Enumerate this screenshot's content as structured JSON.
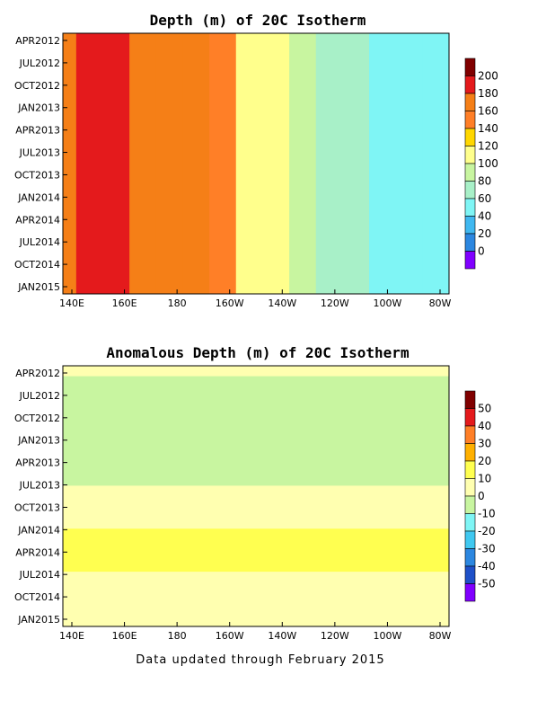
{
  "footer": "Data updated through February 2015",
  "chart_data": [
    {
      "type": "heatmap",
      "title": "Depth (m) of 20C Isotherm",
      "x_ticks": [
        "140E",
        "160E",
        "180",
        "160W",
        "140W",
        "120W",
        "100W",
        "80W"
      ],
      "y_ticks": [
        "APR2012",
        "JUL2012",
        "OCT2012",
        "JAN2013",
        "APR2013",
        "JUL2013",
        "OCT2013",
        "JAN2014",
        "APR2014",
        "JUL2014",
        "OCT2014",
        "JAN2015"
      ],
      "colorbar": {
        "labels": [
          "200",
          "180",
          "160",
          "140",
          "120",
          "100",
          "80",
          "60",
          "40",
          "20",
          "0"
        ],
        "colors": [
          "#800000",
          "#e41a1c",
          "#f57f17",
          "#ff7f27",
          "#ffd700",
          "#ffff8c",
          "#c8f5a0",
          "#a8f0c8",
          "#7ff5f5",
          "#40b8f0",
          "#2c87e0",
          "#8000ff"
        ]
      },
      "bands": [
        {
          "x": 140,
          "value": 165
        },
        {
          "x": 150,
          "value": 185
        },
        {
          "x": 160,
          "value": 180
        },
        {
          "x": 170,
          "value": 170
        },
        {
          "x": 180,
          "value": 165
        },
        {
          "x": 190,
          "value": 160
        },
        {
          "x": 200,
          "value": 140
        },
        {
          "x": 210,
          "value": 118
        },
        {
          "x": 220,
          "value": 100
        },
        {
          "x": 230,
          "value": 85
        },
        {
          "x": 240,
          "value": 72
        },
        {
          "x": 250,
          "value": 62
        },
        {
          "x": 260,
          "value": 55
        },
        {
          "x": 270,
          "value": 48
        },
        {
          "x": 280,
          "value": 42
        }
      ]
    },
    {
      "type": "heatmap",
      "title": "Anomalous Depth (m) of 20C Isotherm",
      "x_ticks": [
        "140E",
        "160E",
        "180",
        "160W",
        "140W",
        "120W",
        "100W",
        "80W"
      ],
      "y_ticks": [
        "APR2012",
        "JUL2012",
        "OCT2012",
        "JAN2013",
        "APR2013",
        "JUL2013",
        "OCT2013",
        "JAN2014",
        "APR2014",
        "JUL2014",
        "OCT2014",
        "JAN2015"
      ],
      "colorbar": {
        "labels": [
          "50",
          "40",
          "30",
          "20",
          "10",
          "0",
          "-10",
          "-20",
          "-30",
          "-40",
          "-50"
        ],
        "colors": [
          "#800000",
          "#e41a1c",
          "#ff7f27",
          "#ffb000",
          "#ffff50",
          "#ffffb0",
          "#c8f5a0",
          "#7ff5f5",
          "#40c8f0",
          "#2c87e0",
          "#1e50c8",
          "#8000ff"
        ]
      },
      "bands": [
        {
          "y": 0.0,
          "value": 5
        },
        {
          "y": 0.08,
          "value": -3
        },
        {
          "y": 0.17,
          "value": -6
        },
        {
          "y": 0.25,
          "value": -4
        },
        {
          "y": 0.33,
          "value": -8
        },
        {
          "y": 0.42,
          "value": -4
        },
        {
          "y": 0.5,
          "value": 3
        },
        {
          "y": 0.58,
          "value": 8
        },
        {
          "y": 0.67,
          "value": 18
        },
        {
          "y": 0.75,
          "value": 12
        },
        {
          "y": 0.83,
          "value": 3
        },
        {
          "y": 0.92,
          "value": 6
        },
        {
          "y": 1.0,
          "value": 4
        }
      ]
    }
  ]
}
